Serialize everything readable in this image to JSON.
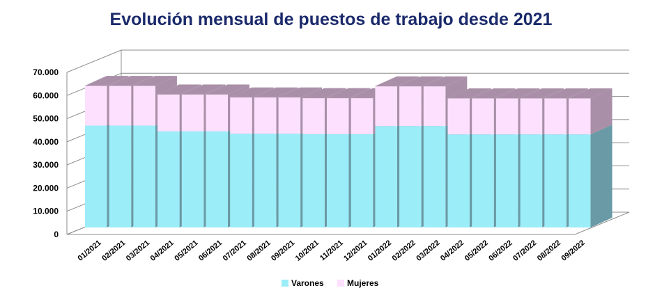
{
  "chart_data": {
    "type": "bar",
    "stacked": true,
    "three_d": true,
    "title": "Evolución mensual de puestos de trabajo  desde 2021",
    "xlabel": "",
    "ylabel": "",
    "ylim": [
      0,
      70000
    ],
    "yticks": [
      "0",
      "10.000",
      "20.000",
      "30.000",
      "40.000",
      "50.000",
      "60.000",
      "70.000"
    ],
    "grid": true,
    "legend_position": "bottom",
    "categories": [
      "01/2021",
      "02/2021",
      "03/2021",
      "04/2021",
      "05/2021",
      "06/2021",
      "07/2021",
      "08/2021",
      "09/2021",
      "10/2021",
      "11/2021",
      "12/2021",
      "01/2022",
      "02/2022",
      "03/2022",
      "04/2022",
      "05/2022",
      "06/2022",
      "07/2022",
      "08/2022",
      "09/2022"
    ],
    "series": [
      {
        "name": "Varones",
        "color": "#9bedf8",
        "side_color": "#6a9aa5",
        "values": [
          44000,
          44000,
          44000,
          41500,
          41500,
          41500,
          40500,
          40500,
          40500,
          40300,
          40300,
          40300,
          43800,
          43800,
          43800,
          40200,
          40200,
          40200,
          40200,
          40200,
          40200
        ]
      },
      {
        "name": "Mujeres",
        "color": "#fde0fd",
        "side_color": "#a98fa8",
        "values": [
          17200,
          17200,
          17200,
          16000,
          16000,
          16000,
          15700,
          15700,
          15700,
          15600,
          15600,
          15600,
          17200,
          17200,
          17200,
          15600,
          15600,
          15600,
          15600,
          15600,
          15600
        ]
      }
    ]
  }
}
